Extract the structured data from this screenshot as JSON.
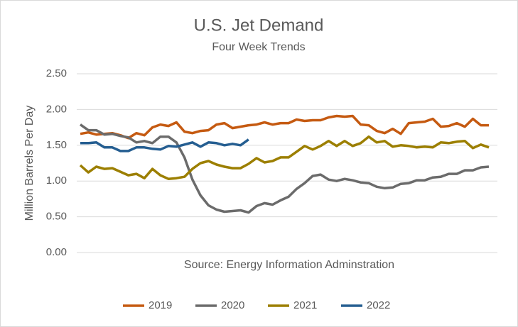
{
  "chart_data": {
    "type": "line",
    "title": "U.S. Jet Demand",
    "subtitle": "Four Week Trends",
    "y_label": "Million Barrels Per Day",
    "annotation": "Source: Energy Information Adminstration",
    "categories": [
      null,
      null,
      null,
      null,
      null,
      null,
      null,
      null,
      null,
      null,
      null,
      null,
      null,
      null,
      null,
      null,
      null,
      null,
      null,
      null,
      null,
      null,
      null,
      null,
      null,
      null,
      null,
      null,
      null,
      null,
      null,
      null,
      null,
      null,
      null,
      null,
      null,
      null,
      null,
      null,
      null,
      null,
      null,
      null,
      null,
      null,
      null,
      null,
      null,
      null,
      null,
      null
    ],
    "series": [
      {
        "name": "2019",
        "color": "#c55a11",
        "values": [
          1.66,
          1.68,
          1.65,
          1.66,
          1.67,
          1.64,
          1.6,
          1.67,
          1.64,
          1.75,
          1.79,
          1.77,
          1.82,
          1.69,
          1.67,
          1.7,
          1.71,
          1.79,
          1.81,
          1.74,
          1.76,
          1.78,
          1.79,
          1.82,
          1.79,
          1.81,
          1.81,
          1.86,
          1.84,
          1.85,
          1.85,
          1.89,
          1.91,
          1.9,
          1.91,
          1.79,
          1.78,
          1.7,
          1.67,
          1.73,
          1.66,
          1.81,
          1.82,
          1.83,
          1.87,
          1.76,
          1.77,
          1.81,
          1.76,
          1.87,
          1.78,
          1.78
        ]
      },
      {
        "name": "2020",
        "color": "#6b6b6b",
        "values": [
          1.79,
          1.71,
          1.71,
          1.65,
          1.66,
          1.63,
          1.61,
          1.54,
          1.56,
          1.53,
          1.62,
          1.62,
          1.54,
          1.33,
          1.02,
          0.8,
          0.66,
          0.6,
          0.57,
          0.58,
          0.59,
          0.56,
          0.65,
          0.69,
          0.67,
          0.73,
          0.78,
          0.89,
          0.97,
          1.07,
          1.09,
          1.02,
          1.0,
          1.03,
          1.01,
          0.98,
          0.97,
          0.92,
          0.9,
          0.91,
          0.96,
          0.97,
          1.01,
          1.01,
          1.05,
          1.06,
          1.1,
          1.1,
          1.15,
          1.15,
          1.19,
          1.2
        ]
      },
      {
        "name": "2021",
        "color": "#9c7f00",
        "values": [
          1.22,
          1.12,
          1.2,
          1.17,
          1.18,
          1.13,
          1.08,
          1.1,
          1.04,
          1.17,
          1.08,
          1.03,
          1.04,
          1.06,
          1.17,
          1.25,
          1.28,
          1.23,
          1.2,
          1.18,
          1.18,
          1.24,
          1.32,
          1.26,
          1.28,
          1.33,
          1.33,
          1.41,
          1.49,
          1.44,
          1.49,
          1.56,
          1.49,
          1.56,
          1.49,
          1.53,
          1.62,
          1.54,
          1.56,
          1.48,
          1.5,
          1.49,
          1.47,
          1.48,
          1.47,
          1.54,
          1.53,
          1.55,
          1.56,
          1.46,
          1.51,
          1.47
        ]
      },
      {
        "name": "2022",
        "color": "#255e91",
        "values": [
          1.53,
          1.53,
          1.54,
          1.47,
          1.47,
          1.42,
          1.42,
          1.47,
          1.47,
          1.45,
          1.44,
          1.49,
          1.48,
          1.51,
          1.54,
          1.48,
          1.54,
          1.53,
          1.5,
          1.52,
          1.5,
          1.58,
          null,
          null,
          null,
          null,
          null,
          null,
          null,
          null,
          null,
          null,
          null,
          null,
          null,
          null,
          null,
          null,
          null,
          null,
          null,
          null,
          null,
          null,
          null,
          null,
          null,
          null,
          null,
          null,
          null,
          null
        ]
      }
    ],
    "ylim": [
      0,
      2.5
    ],
    "yticks": [
      {
        "value": 0,
        "label": "0.00"
      },
      {
        "value": 0.5,
        "label": "0.50"
      },
      {
        "value": 1,
        "label": "1.00"
      },
      {
        "value": 1.5,
        "label": "1.50"
      },
      {
        "value": 2,
        "label": "2.00"
      },
      {
        "value": 2.5,
        "label": "2.50"
      }
    ],
    "grid": true
  }
}
